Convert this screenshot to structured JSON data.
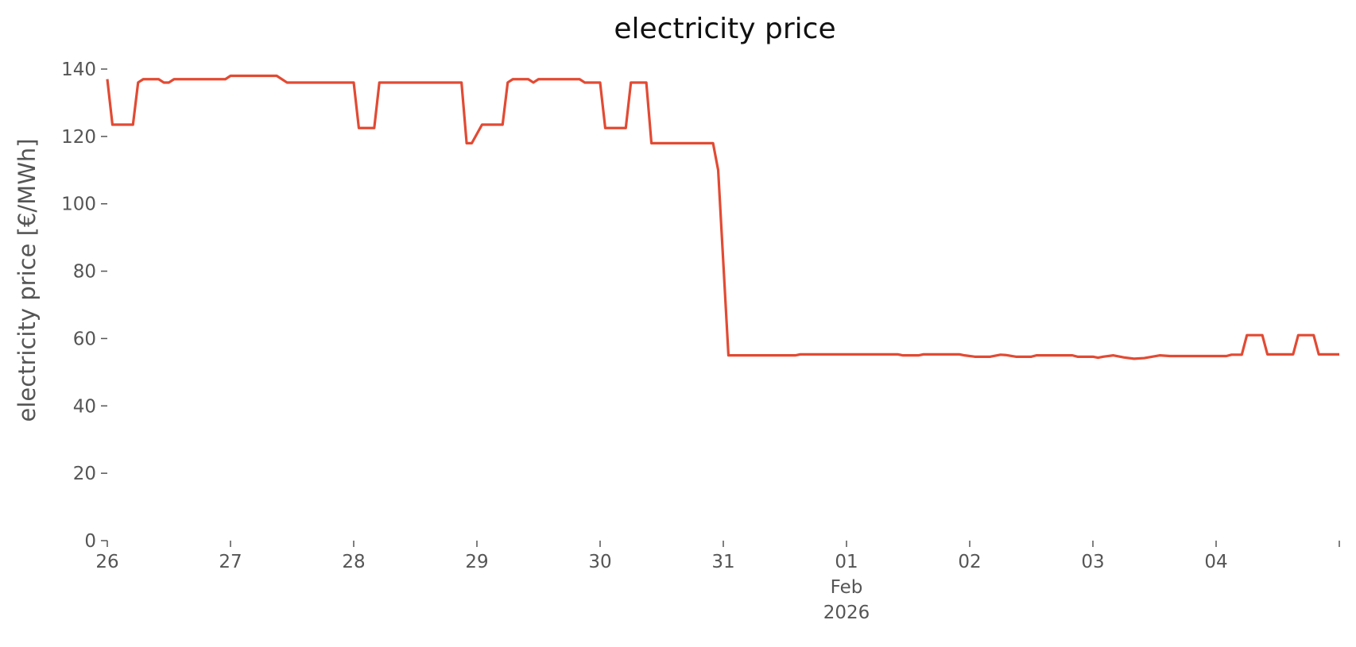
{
  "chart_data": {
    "type": "line",
    "title": "electricity price",
    "y_label": "electricity price [€/MWh]",
    "color": "#e24a33",
    "x": [
      "2026-01-26T00:00",
      "2026-01-26T01:00",
      "2026-01-26T05:00",
      "2026-01-26T06:00",
      "2026-01-26T07:00",
      "2026-01-26T10:00",
      "2026-01-26T11:00",
      "2026-01-26T12:00",
      "2026-01-26T13:00",
      "2026-01-26T23:00",
      "2026-01-27T00:00",
      "2026-01-27T09:00",
      "2026-01-27T11:00",
      "2026-01-28T00:00",
      "2026-01-28T01:00",
      "2026-01-28T04:00",
      "2026-01-28T05:00",
      "2026-01-28T21:00",
      "2026-01-28T22:00",
      "2026-01-28T23:00",
      "2026-01-29T01:00",
      "2026-01-29T05:00",
      "2026-01-29T06:00",
      "2026-01-29T07:00",
      "2026-01-29T10:00",
      "2026-01-29T11:00",
      "2026-01-29T12:00",
      "2026-01-29T20:00",
      "2026-01-29T21:00",
      "2026-01-30T00:00",
      "2026-01-30T01:00",
      "2026-01-30T05:00",
      "2026-01-30T06:00",
      "2026-01-30T09:00",
      "2026-01-30T10:00",
      "2026-01-30T22:00",
      "2026-01-30T23:00",
      "2026-01-31T01:00",
      "2026-01-31T14:00",
      "2026-01-31T15:00",
      "2026-02-01T10:00",
      "2026-02-01T11:00",
      "2026-02-01T14:00",
      "2026-02-01T15:00",
      "2026-02-01T22:00",
      "2026-02-01T23:00",
      "2026-02-02T01:00",
      "2026-02-02T04:00",
      "2026-02-02T06:00",
      "2026-02-02T07:00",
      "2026-02-02T09:00",
      "2026-02-02T12:00",
      "2026-02-02T13:00",
      "2026-02-02T20:00",
      "2026-02-02T21:00",
      "2026-02-03T00:00",
      "2026-02-03T01:00",
      "2026-02-03T02:00",
      "2026-02-03T04:00",
      "2026-02-03T06:00",
      "2026-02-03T08:00",
      "2026-02-03T10:00",
      "2026-02-03T13:00",
      "2026-02-03T15:00",
      "2026-02-04T02:00",
      "2026-02-04T03:00",
      "2026-02-04T05:00",
      "2026-02-04T06:00",
      "2026-02-04T09:00",
      "2026-02-04T10:00",
      "2026-02-04T15:00",
      "2026-02-04T16:00",
      "2026-02-04T19:00",
      "2026-02-04T20:00",
      "2026-02-05T00:00"
    ],
    "values": [
      137,
      123.5,
      123.5,
      136,
      137,
      137,
      136,
      136,
      137,
      137,
      138,
      138,
      136,
      136,
      122.5,
      122.5,
      136,
      136,
      118,
      118,
      123.5,
      123.5,
      136,
      137,
      137,
      136,
      137,
      137,
      136,
      136,
      122.5,
      122.5,
      136,
      136,
      118,
      118,
      110,
      55,
      55,
      55.3,
      55.3,
      55,
      55,
      55.3,
      55.3,
      55,
      54.6,
      54.6,
      55.2,
      55.1,
      54.6,
      54.6,
      55,
      55,
      54.6,
      54.6,
      54.3,
      54.6,
      55,
      54.4,
      54,
      54.2,
      55,
      54.8,
      54.8,
      55.2,
      55.2,
      61,
      61,
      55.3,
      55.3,
      61,
      61,
      55.3,
      55.3
    ],
    "xlim": [
      "2026-01-26T00:00",
      "2026-02-05T00:00"
    ],
    "xticks": [
      {
        "value": "2026-01-26T00:00",
        "label": "26"
      },
      {
        "value": "2026-01-27T00:00",
        "label": "27"
      },
      {
        "value": "2026-01-28T00:00",
        "label": "28"
      },
      {
        "value": "2026-01-29T00:00",
        "label": "29"
      },
      {
        "value": "2026-01-30T00:00",
        "label": "30"
      },
      {
        "value": "2026-01-31T00:00",
        "label": "31"
      },
      {
        "value": "2026-02-01T00:00",
        "label": "01\nFeb\n2026"
      },
      {
        "value": "2026-02-02T00:00",
        "label": "02"
      },
      {
        "value": "2026-02-03T00:00",
        "label": "03"
      },
      {
        "value": "2026-02-04T00:00",
        "label": "04"
      },
      {
        "value": "2026-02-05T00:00",
        "label": null
      }
    ],
    "ylim": [
      0,
      140
    ],
    "yticks": [
      0,
      20,
      40,
      60,
      80,
      100,
      120,
      140
    ],
    "grid": false
  }
}
